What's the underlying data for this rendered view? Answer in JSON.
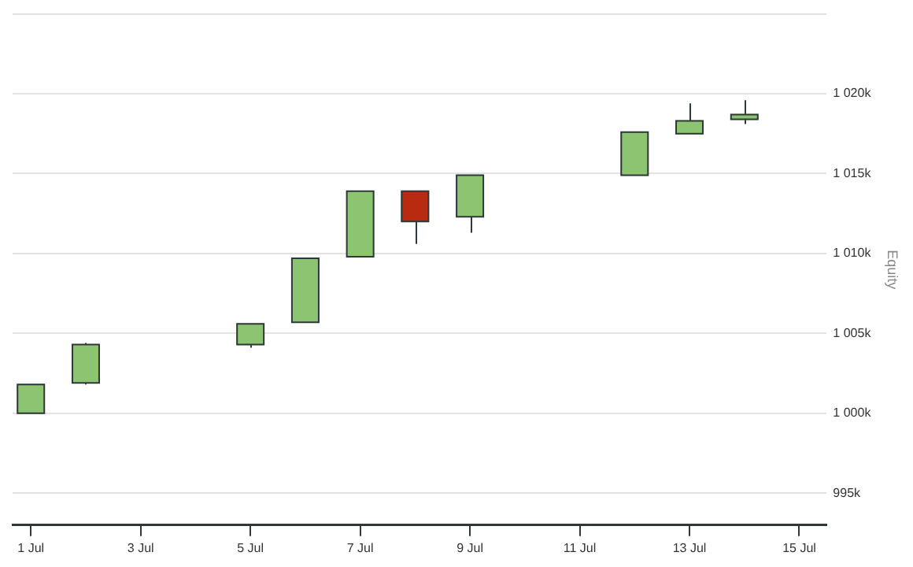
{
  "chart_data": {
    "type": "candlestick",
    "ylabel": "Equity",
    "x": [
      "--07-01",
      "--07-02",
      "--07-05",
      "--07-06",
      "--07-07",
      "--07-08",
      "--07-09",
      "--07-12",
      "--07-13",
      "--07-14"
    ],
    "ohlc": [
      [
        1000000,
        1001800,
        1000000,
        1001800
      ],
      [
        1001900,
        1004400,
        1001800,
        1004300
      ],
      [
        1004300,
        1005600,
        1004100,
        1005600
      ],
      [
        1005700,
        1009700,
        1005700,
        1009700
      ],
      [
        1009800,
        1013900,
        1009800,
        1013900
      ],
      [
        1013900,
        1013900,
        1010600,
        1012000
      ],
      [
        1012300,
        1014900,
        1011300,
        1014900
      ],
      [
        1014900,
        1017600,
        1014900,
        1017600
      ],
      [
        1017500,
        1019400,
        1017500,
        1018300
      ],
      [
        1018400,
        1019600,
        1018100,
        1018700
      ]
    ],
    "colors": [
      "#8dc471",
      "#8dc471",
      "#8dc471",
      "#8dc471",
      "#8dc471",
      "#b82b10",
      "#8dc471",
      "#8dc471",
      "#8dc471",
      "#8dc471"
    ],
    "xlim": [
      "--06-30T16:00",
      "--07-15T12:00"
    ],
    "xticks": [
      {
        "value": "--07-01",
        "label": "1 Jul"
      },
      {
        "value": "--07-03",
        "label": "3 Jul"
      },
      {
        "value": "--07-05",
        "label": "5 Jul"
      },
      {
        "value": "--07-07",
        "label": "7 Jul"
      },
      {
        "value": "--07-09",
        "label": "9 Jul"
      },
      {
        "value": "--07-11",
        "label": "11 Jul"
      },
      {
        "value": "--07-13",
        "label": "13 Jul"
      },
      {
        "value": "--07-15",
        "label": "15 Jul"
      }
    ],
    "ylim": [
      993000,
      1025000
    ],
    "yticks": [
      {
        "value": 995000,
        "label": "995k"
      },
      {
        "value": 1000000,
        "label": "1 000k"
      },
      {
        "value": 1005000,
        "label": "1 005k"
      },
      {
        "value": 1010000,
        "label": "1 010k"
      },
      {
        "value": 1015000,
        "label": "1 015k"
      },
      {
        "value": 1020000,
        "label": "1 020k"
      },
      {
        "value": 1025000,
        "label": null
      }
    ],
    "grid": "y",
    "legend": false
  }
}
